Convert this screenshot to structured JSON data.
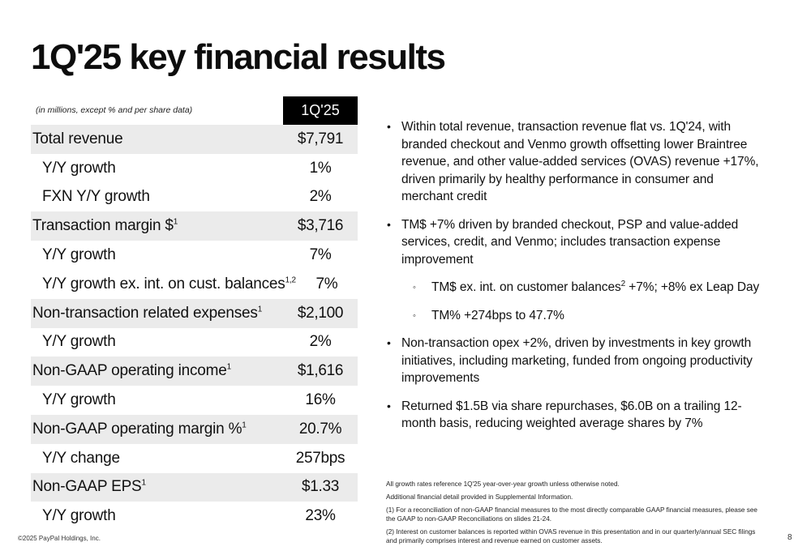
{
  "title": "1Q'25 key financial results",
  "table": {
    "note": "(in millions, except % and per share data)",
    "period": "1Q'25",
    "rows": [
      {
        "label": "Total revenue",
        "sup": "",
        "value": "$7,791",
        "type": "main"
      },
      {
        "label": "Y/Y growth",
        "sup": "",
        "value": "1%",
        "type": "sub"
      },
      {
        "label": "FXN Y/Y growth",
        "sup": "",
        "value": "2%",
        "type": "sub"
      },
      {
        "label": "Transaction margin $",
        "sup": "1",
        "value": "$3,716",
        "type": "main"
      },
      {
        "label": "Y/Y growth",
        "sup": "",
        "value": "7%",
        "type": "sub"
      },
      {
        "label": "Y/Y growth ex. int. on cust. balances",
        "sup": "1,2",
        "value": "7%",
        "type": "sub"
      },
      {
        "label": "Non-transaction related expenses",
        "sup": "1",
        "value": "$2,100",
        "type": "main"
      },
      {
        "label": "Y/Y growth",
        "sup": "",
        "value": "2%",
        "type": "sub"
      },
      {
        "label": "Non-GAAP operating income",
        "sup": "1",
        "value": "$1,616",
        "type": "main"
      },
      {
        "label": "Y/Y growth",
        "sup": "",
        "value": "16%",
        "type": "sub"
      },
      {
        "label": "Non-GAAP operating margin %",
        "sup": "1",
        "value": "20.7%",
        "type": "main"
      },
      {
        "label": "Y/Y change",
        "sup": "",
        "value": "257bps",
        "type": "sub"
      },
      {
        "label": "Non-GAAP EPS",
        "sup": "1",
        "value": "$1.33",
        "type": "main"
      },
      {
        "label": "Y/Y growth",
        "sup": "",
        "value": "23%",
        "type": "sub"
      }
    ]
  },
  "bullets": {
    "b1": "Within total revenue, transaction revenue flat vs. 1Q'24, with branded checkout and Venmo growth offsetting lower Braintree revenue, and other value-added services (OVAS) revenue +17%, driven primarily by healthy performance in consumer and merchant credit",
    "b2": "TM$ +7% driven by branded checkout, PSP and value-added services, credit, and Venmo; includes transaction expense improvement",
    "b2a_pre": "TM$ ex. int. on customer balances",
    "b2a_sup": "2",
    "b2a_post": " +7%; +8% ex Leap Day",
    "b2b": "TM% +274bps to 47.7%",
    "b3": "Non-transaction opex +2%, driven by investments in key growth initiatives, including marketing, funded from ongoing productivity improvements",
    "b4": "Returned $1.5B via share repurchases, $6.0B on a trailing 12-month basis, reducing weighted average shares by 7%",
    "dot": "•",
    "sub_dot": "◦"
  },
  "footnotes": {
    "f1": "All growth rates reference 1Q'25 year-over-year growth unless otherwise noted.",
    "f2": "Additional financial detail provided in Supplemental Information.",
    "f3": "(1) For a reconciliation of non-GAAP financial measures to the most directly comparable GAAP financial measures, please see the GAAP to non-GAAP Reconciliations on slides 21-24.",
    "f4": "(2) Interest on customer balances is reported within OVAS revenue in this presentation and in our quarterly/annual SEC filings and primarily comprises interest and revenue earned on customer assets."
  },
  "copyright": "©2025 PayPal Holdings, Inc.",
  "page_number": "8"
}
